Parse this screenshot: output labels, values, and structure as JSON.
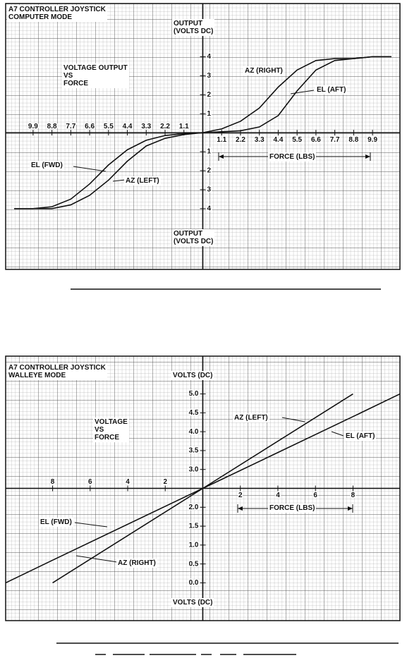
{
  "chart_data": [
    {
      "type": "line",
      "title": "A7 CONTROLLER JOYSTICK\nCOMPUTER MODE",
      "subtitle": "VOLTAGE OUTPUT\nVS\nFORCE",
      "ylabel": "OUTPUT\n(VOLTS DC)",
      "xlabel": "FORCE (LBS)",
      "grid": true,
      "x_axis_crossing": 0,
      "xlim": [
        -11.5,
        11.5
      ],
      "ylim": [
        -7.2,
        6.8
      ],
      "xticks": [
        {
          "value": -9.9,
          "label": "9.9"
        },
        {
          "value": -8.8,
          "label": "8.8"
        },
        {
          "value": -7.7,
          "label": "7.7"
        },
        {
          "value": -6.6,
          "label": "6.6"
        },
        {
          "value": -5.5,
          "label": "5.5"
        },
        {
          "value": -4.4,
          "label": "4.4"
        },
        {
          "value": -3.3,
          "label": "3.3"
        },
        {
          "value": -2.2,
          "label": "2.2"
        },
        {
          "value": -1.1,
          "label": "1.1"
        },
        1.1,
        2.2,
        3.3,
        4.4,
        5.5,
        6.6,
        7.7,
        8.8,
        9.9
      ],
      "yticks": [
        {
          "value": -4,
          "label": "4"
        },
        {
          "value": -3,
          "label": "3"
        },
        {
          "value": -2,
          "label": "2"
        },
        {
          "value": -1,
          "label": "1"
        },
        1,
        2,
        3,
        4
      ],
      "x": [
        -11,
        -9.9,
        -8.8,
        -7.7,
        -6.6,
        -5.5,
        -4.4,
        -3.3,
        -2.2,
        -1.1,
        0,
        1.1,
        2.2,
        3.3,
        4.4,
        5.5,
        6.6,
        7.7,
        8.8,
        9.9,
        11
      ],
      "series": [
        {
          "name": "AZ (RIGHT)",
          "color": "#111111",
          "values": [
            null,
            null,
            null,
            null,
            null,
            null,
            null,
            null,
            null,
            null,
            0,
            0.2,
            0.6,
            1.3,
            2.4,
            3.3,
            3.8,
            3.9,
            3.9,
            4.0,
            4.0
          ]
        },
        {
          "name": "EL (AFT)",
          "color": "#111111",
          "values": [
            null,
            null,
            null,
            null,
            null,
            null,
            null,
            null,
            null,
            null,
            0,
            0.05,
            0.1,
            0.3,
            0.9,
            2.2,
            3.3,
            3.8,
            3.9,
            4.0,
            4.0
          ]
        },
        {
          "name": "EL (FWD)",
          "color": "#111111",
          "values": [
            -4,
            -4,
            -3.9,
            -3.5,
            -2.7,
            -1.7,
            -0.9,
            -0.4,
            -0.15,
            -0.05,
            0,
            null,
            null,
            null,
            null,
            null,
            null,
            null,
            null,
            null,
            null
          ]
        },
        {
          "name": "AZ (LEFT)",
          "color": "#111111",
          "values": [
            -4,
            -4,
            -4,
            -3.8,
            -3.3,
            -2.5,
            -1.5,
            -0.7,
            -0.3,
            -0.1,
            0,
            null,
            null,
            null,
            null,
            null,
            null,
            null,
            null,
            null,
            null
          ]
        }
      ]
    },
    {
      "type": "line",
      "title": "A7 CONTROLLER JOYSTICK\nWALLEYE MODE",
      "subtitle": "VOLTAGE\nVS\nFORCE",
      "ylabel": "VOLTS (DC)",
      "xlabel": "FORCE (LBS)",
      "grid": true,
      "x_axis_crossing": 2.5,
      "xlim": [
        -10.5,
        10.5
      ],
      "ylim": [
        -1,
        6
      ],
      "xticks": [
        {
          "value": -8,
          "label": "8"
        },
        {
          "value": -6,
          "label": "6"
        },
        {
          "value": -4,
          "label": "4"
        },
        {
          "value": -2,
          "label": "2"
        },
        2,
        4,
        6,
        8
      ],
      "yticks": [
        {
          "value": 0,
          "label": "0.0"
        },
        0.5,
        {
          "value": 1,
          "label": "1.0"
        },
        1.5,
        {
          "value": 2,
          "label": "2.0"
        },
        {
          "value": 3,
          "label": "3.0"
        },
        3.5,
        {
          "value": 4,
          "label": "4.0"
        },
        4.5,
        {
          "value": 5,
          "label": "5.0"
        }
      ],
      "x": [
        -10.5,
        -8,
        0,
        8,
        10.5
      ],
      "series": [
        {
          "name": "AZ (LEFT)",
          "color": "#111111",
          "values": [
            null,
            null,
            2.5,
            5.0,
            null
          ]
        },
        {
          "name": "EL (AFT)",
          "color": "#111111",
          "values": [
            null,
            null,
            2.5,
            4.4,
            5.0
          ]
        },
        {
          "name": "EL (FWD)",
          "color": "#111111",
          "values": [
            0.0,
            0.6,
            2.5,
            null,
            null
          ]
        },
        {
          "name": "AZ (RIGHT)",
          "color": "#111111",
          "values": [
            null,
            0.0,
            2.5,
            null,
            null
          ]
        }
      ]
    }
  ]
}
